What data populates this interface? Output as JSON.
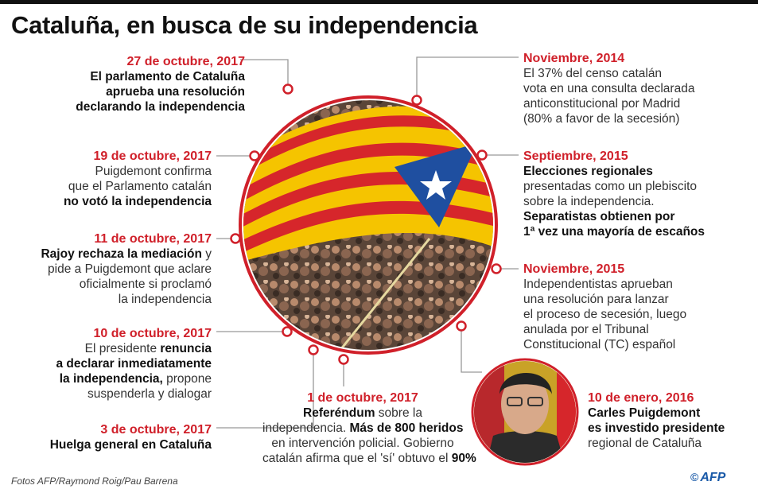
{
  "title": "Cataluña, en busca de su independencia",
  "colors": {
    "accent": "#d0202a",
    "circle": "#d0202a",
    "flag_yellow": "#f5c400",
    "flag_red": "#d6262b",
    "estelada_blue": "#1f4fa0"
  },
  "events": [
    {
      "id": "e1",
      "date": "27 de octubre, 2017",
      "lines": [
        [
          {
            "t": "El parlamento de Cataluña",
            "b": true
          }
        ],
        [
          {
            "t": "aprueba una resolución",
            "b": true
          }
        ],
        [
          {
            "t": "declarando la independencia",
            "b": true
          }
        ]
      ]
    },
    {
      "id": "e2",
      "date": "19 de octubre, 2017",
      "lines": [
        [
          {
            "t": "Puigdemont confirma",
            "b": false
          }
        ],
        [
          {
            "t": "que el Parlamento catalán",
            "b": false
          }
        ],
        [
          {
            "t": "no votó la independencia",
            "b": true
          }
        ]
      ]
    },
    {
      "id": "e3",
      "date": "11 de octubre, 2017",
      "lines": [
        [
          {
            "t": "Rajoy rechaza la mediación",
            "b": true
          },
          {
            "t": " y",
            "b": false
          }
        ],
        [
          {
            "t": "pide a Puigdemont que aclare",
            "b": false
          }
        ],
        [
          {
            "t": "oficialmente si proclamó",
            "b": false
          }
        ],
        [
          {
            "t": "la independencia",
            "b": false
          }
        ]
      ]
    },
    {
      "id": "e4",
      "date": "10 de octubre, 2017",
      "lines": [
        [
          {
            "t": "El presidente ",
            "b": false
          },
          {
            "t": "renuncia",
            "b": true
          }
        ],
        [
          {
            "t": "a declarar inmediatamente",
            "b": true
          }
        ],
        [
          {
            "t": "la independencia,",
            "b": true
          },
          {
            "t": " propone",
            "b": false
          }
        ],
        [
          {
            "t": "suspenderla y dialogar",
            "b": false
          }
        ]
      ]
    },
    {
      "id": "e5",
      "date": "3 de octubre, 2017",
      "lines": [
        [
          {
            "t": "Huelga general en Cataluña",
            "b": true
          }
        ]
      ]
    },
    {
      "id": "e6",
      "date": "1 de octubre, 2017",
      "lines": [
        [
          {
            "t": "Referéndum",
            "b": true
          },
          {
            "t": " sobre la",
            "b": false
          }
        ],
        [
          {
            "t": "independencia. ",
            "b": false
          },
          {
            "t": "Más de 800 heridos",
            "b": true
          }
        ],
        [
          {
            "t": "en intervención policial. Gobierno",
            "b": false
          }
        ],
        [
          {
            "t": "catalán afirma que el 'sí' obtuvo el ",
            "b": false
          },
          {
            "t": "90%",
            "b": true
          }
        ]
      ]
    },
    {
      "id": "e7",
      "date": "Noviembre, 2014",
      "lines": [
        [
          {
            "t": "El 37% del censo catalán",
            "b": false
          }
        ],
        [
          {
            "t": "vota en una consulta declarada",
            "b": false
          }
        ],
        [
          {
            "t": "anticonstitucional por Madrid",
            "b": false
          }
        ],
        [
          {
            "t": "(80% a favor de la secesión)",
            "b": false
          }
        ]
      ]
    },
    {
      "id": "e8",
      "date": "Septiembre, 2015",
      "lines": [
        [
          {
            "t": "Elecciones regionales",
            "b": true
          }
        ],
        [
          {
            "t": "presentadas como un plebiscito",
            "b": false
          }
        ],
        [
          {
            "t": "sobre la independencia.",
            "b": false
          }
        ],
        [
          {
            "t": "Separatistas obtienen por",
            "b": true
          }
        ],
        [
          {
            "t": "1ª vez una mayoría de escaños",
            "b": true
          }
        ]
      ]
    },
    {
      "id": "e9",
      "date": "Noviembre, 2015",
      "lines": [
        [
          {
            "t": "Independentistas aprueban",
            "b": false
          }
        ],
        [
          {
            "t": "una resolución para lanzar",
            "b": false
          }
        ],
        [
          {
            "t": "el proceso de secesión, luego",
            "b": false
          }
        ],
        [
          {
            "t": "anulada por el Tribunal",
            "b": false
          }
        ],
        [
          {
            "t": "Constitucional (TC) español",
            "b": false
          }
        ]
      ]
    },
    {
      "id": "e10",
      "date": "10 de enero, 2016",
      "lines": [
        [
          {
            "t": "Carles Puigdemont",
            "b": true
          }
        ],
        [
          {
            "t": "es investido presidente",
            "b": true
          }
        ],
        [
          {
            "t": "regional de Cataluña",
            "b": false
          }
        ]
      ]
    }
  ],
  "credit": "Fotos AFP/Raymond Roig/Pau Barrena",
  "logo": {
    "symbol": "©",
    "text": "AFP"
  }
}
